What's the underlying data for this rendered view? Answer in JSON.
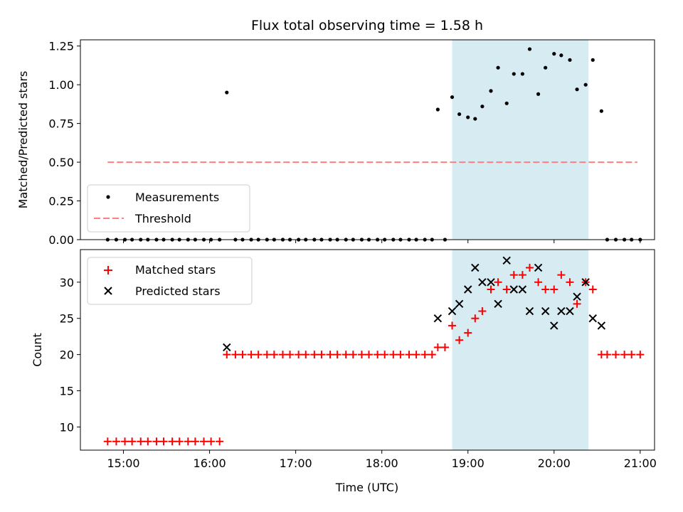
{
  "chart_data": [
    {
      "type": "scatter",
      "title": "Flux total observing time = 1.58 h",
      "ylabel": "Matched/Predicted stars",
      "ylim": [
        0,
        1.29
      ],
      "yticks": [
        0,
        0.25,
        0.5,
        0.75,
        1.0,
        1.25
      ],
      "ytick_labels": [
        "0.00",
        "0.25",
        "0.50",
        "0.75",
        "1.00",
        "1.25"
      ],
      "highlight_span": [
        "18:49",
        "20:24"
      ],
      "highlight_color": "#add8e6",
      "legend_placement": "lower-left",
      "series": [
        {
          "name": "Measurements",
          "style": "dots",
          "color": "#000000",
          "points": [
            [
              "14:49",
              0
            ],
            [
              "14:55",
              0
            ],
            [
              "15:01",
              0
            ],
            [
              "15:06",
              0
            ],
            [
              "15:12",
              0
            ],
            [
              "15:17",
              0
            ],
            [
              "15:23",
              0
            ],
            [
              "15:28",
              0
            ],
            [
              "15:34",
              0
            ],
            [
              "15:39",
              0
            ],
            [
              "15:45",
              0
            ],
            [
              "15:50",
              0
            ],
            [
              "15:56",
              0
            ],
            [
              "16:01",
              0
            ],
            [
              "16:07",
              0
            ],
            [
              "16:12",
              0.95
            ],
            [
              "16:18",
              0
            ],
            [
              "16:23",
              0
            ],
            [
              "16:29",
              0
            ],
            [
              "16:34",
              0
            ],
            [
              "16:40",
              0
            ],
            [
              "16:45",
              0
            ],
            [
              "16:51",
              0
            ],
            [
              "16:56",
              0
            ],
            [
              "17:02",
              0
            ],
            [
              "17:07",
              0
            ],
            [
              "17:13",
              0
            ],
            [
              "17:18",
              0
            ],
            [
              "17:24",
              0
            ],
            [
              "17:29",
              0
            ],
            [
              "17:35",
              0
            ],
            [
              "17:40",
              0
            ],
            [
              "17:46",
              0
            ],
            [
              "17:51",
              0
            ],
            [
              "17:57",
              0
            ],
            [
              "18:02",
              0
            ],
            [
              "18:08",
              0
            ],
            [
              "18:13",
              0
            ],
            [
              "18:19",
              0
            ],
            [
              "18:24",
              0
            ],
            [
              "18:30",
              0
            ],
            [
              "18:35",
              0
            ],
            [
              "18:39",
              0.84
            ],
            [
              "18:44",
              0
            ],
            [
              "18:49",
              0.92
            ],
            [
              "18:54",
              0.81
            ],
            [
              "19:00",
              0.79
            ],
            [
              "19:05",
              0.78
            ],
            [
              "19:10",
              0.86
            ],
            [
              "19:16",
              0.96
            ],
            [
              "19:21",
              1.11
            ],
            [
              "19:27",
              0.88
            ],
            [
              "19:32",
              1.07
            ],
            [
              "19:38",
              1.07
            ],
            [
              "19:43",
              1.23
            ],
            [
              "19:49",
              0.94
            ],
            [
              "19:54",
              1.11
            ],
            [
              "20:00",
              1.2
            ],
            [
              "20:05",
              1.19
            ],
            [
              "20:11",
              1.16
            ],
            [
              "20:16",
              0.97
            ],
            [
              "20:22",
              1.0
            ],
            [
              "20:27",
              1.16
            ],
            [
              "20:33",
              0.83
            ],
            [
              "20:37",
              0
            ],
            [
              "20:43",
              0
            ],
            [
              "20:49",
              0
            ],
            [
              "20:54",
              0
            ],
            [
              "21:00",
              0
            ]
          ]
        },
        {
          "name": "Threshold",
          "style": "dashed-line",
          "color": "#ff7f7f",
          "points": [
            [
              "14:49",
              0.5
            ],
            [
              "20:58",
              0.5
            ]
          ]
        }
      ]
    },
    {
      "type": "scatter",
      "xlabel": "Time (UTC)",
      "ylabel": "Count",
      "xlim": [
        "14:30",
        "21:10"
      ],
      "ylim": [
        6.8,
        34.5
      ],
      "xticks": [
        "15:00",
        "16:00",
        "17:00",
        "18:00",
        "19:00",
        "20:00",
        "21:00"
      ],
      "yticks": [
        10,
        15,
        20,
        25,
        30
      ],
      "ytick_labels": [
        "10",
        "15",
        "20",
        "25",
        "30"
      ],
      "highlight_span": [
        "18:49",
        "20:24"
      ],
      "highlight_color": "#add8e6",
      "legend_placement": "upper-left",
      "series": [
        {
          "name": "Matched stars",
          "style": "plus",
          "color": "#ff0000",
          "points": [
            [
              "14:49",
              8
            ],
            [
              "14:55",
              8
            ],
            [
              "15:01",
              8
            ],
            [
              "15:06",
              8
            ],
            [
              "15:12",
              8
            ],
            [
              "15:17",
              8
            ],
            [
              "15:23",
              8
            ],
            [
              "15:28",
              8
            ],
            [
              "15:34",
              8
            ],
            [
              "15:39",
              8
            ],
            [
              "15:45",
              8
            ],
            [
              "15:50",
              8
            ],
            [
              "15:56",
              8
            ],
            [
              "16:01",
              8
            ],
            [
              "16:07",
              8
            ],
            [
              "16:12",
              20
            ],
            [
              "16:18",
              20
            ],
            [
              "16:23",
              20
            ],
            [
              "16:29",
              20
            ],
            [
              "16:34",
              20
            ],
            [
              "16:40",
              20
            ],
            [
              "16:45",
              20
            ],
            [
              "16:51",
              20
            ],
            [
              "16:56",
              20
            ],
            [
              "17:02",
              20
            ],
            [
              "17:07",
              20
            ],
            [
              "17:13",
              20
            ],
            [
              "17:18",
              20
            ],
            [
              "17:24",
              20
            ],
            [
              "17:29",
              20
            ],
            [
              "17:35",
              20
            ],
            [
              "17:40",
              20
            ],
            [
              "17:46",
              20
            ],
            [
              "17:51",
              20
            ],
            [
              "17:57",
              20
            ],
            [
              "18:02",
              20
            ],
            [
              "18:08",
              20
            ],
            [
              "18:13",
              20
            ],
            [
              "18:19",
              20
            ],
            [
              "18:24",
              20
            ],
            [
              "18:30",
              20
            ],
            [
              "18:35",
              20
            ],
            [
              "18:39",
              21
            ],
            [
              "18:44",
              21
            ],
            [
              "18:49",
              24
            ],
            [
              "18:54",
              22
            ],
            [
              "19:00",
              23
            ],
            [
              "19:05",
              25
            ],
            [
              "19:10",
              26
            ],
            [
              "19:16",
              29
            ],
            [
              "19:21",
              30
            ],
            [
              "19:27",
              29
            ],
            [
              "19:32",
              31
            ],
            [
              "19:38",
              31
            ],
            [
              "19:43",
              32
            ],
            [
              "19:49",
              30
            ],
            [
              "19:54",
              29
            ],
            [
              "20:00",
              29
            ],
            [
              "20:05",
              31
            ],
            [
              "20:11",
              30
            ],
            [
              "20:16",
              27
            ],
            [
              "20:22",
              30
            ],
            [
              "20:27",
              29
            ],
            [
              "20:33",
              20
            ],
            [
              "20:37",
              20
            ],
            [
              "20:43",
              20
            ],
            [
              "20:49",
              20
            ],
            [
              "20:54",
              20
            ],
            [
              "21:00",
              20
            ]
          ]
        },
        {
          "name": "Predicted stars",
          "style": "x",
          "color": "#000000",
          "points": [
            [
              "16:12",
              21
            ],
            [
              "18:39",
              25
            ],
            [
              "18:49",
              26
            ],
            [
              "18:54",
              27
            ],
            [
              "19:00",
              29
            ],
            [
              "19:05",
              32
            ],
            [
              "19:10",
              30
            ],
            [
              "19:16",
              30
            ],
            [
              "19:21",
              27
            ],
            [
              "19:27",
              33
            ],
            [
              "19:32",
              29
            ],
            [
              "19:38",
              29
            ],
            [
              "19:43",
              26
            ],
            [
              "19:49",
              32
            ],
            [
              "19:54",
              26
            ],
            [
              "20:00",
              24
            ],
            [
              "20:05",
              26
            ],
            [
              "20:11",
              26
            ],
            [
              "20:16",
              28
            ],
            [
              "20:22",
              30
            ],
            [
              "20:27",
              25
            ],
            [
              "20:33",
              24
            ]
          ]
        }
      ]
    }
  ]
}
